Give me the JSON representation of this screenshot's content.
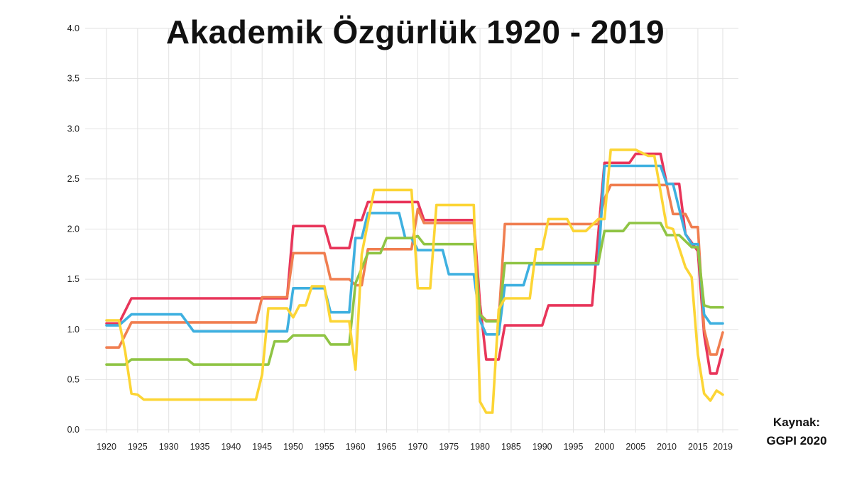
{
  "chart_data": {
    "type": "line",
    "title": "Akademik Özgürlük 1920 - 2019",
    "xlabel": "",
    "ylabel": "",
    "xlim": [
      1920,
      2019
    ],
    "ylim": [
      0,
      4
    ],
    "grid": true,
    "legend": "none",
    "x_ticks": [
      "1920",
      "1925",
      "1930",
      "1935",
      "1940",
      "1945",
      "1950",
      "1955",
      "1960",
      "1965",
      "1970",
      "1975",
      "1980",
      "1985",
      "1990",
      "1995",
      "2000",
      "2005",
      "2010",
      "2015",
      "2019"
    ],
    "y_ticks": [
      "0.0",
      "0.5",
      "1.0",
      "1.5",
      "2.0",
      "2.5",
      "3.0",
      "3.5",
      "4.0"
    ],
    "series": [
      {
        "color": "#e8355a",
        "points": [
          [
            1920,
            1.06
          ],
          [
            1922,
            1.06
          ],
          [
            1924,
            1.31
          ],
          [
            1949,
            1.31
          ],
          [
            1950,
            2.03
          ],
          [
            1955,
            2.03
          ],
          [
            1956,
            1.81
          ],
          [
            1959,
            1.81
          ],
          [
            1960,
            2.09
          ],
          [
            1961,
            2.09
          ],
          [
            1962,
            2.27
          ],
          [
            1970,
            2.27
          ],
          [
            1971,
            2.09
          ],
          [
            1979,
            2.09
          ],
          [
            1980,
            1.25
          ],
          [
            1981,
            0.7
          ],
          [
            1983,
            0.7
          ],
          [
            1984,
            1.04
          ],
          [
            1990,
            1.04
          ],
          [
            1991,
            1.24
          ],
          [
            1998,
            1.24
          ],
          [
            2000,
            2.66
          ],
          [
            2004,
            2.66
          ],
          [
            2005,
            2.75
          ],
          [
            2009,
            2.75
          ],
          [
            2010,
            2.45
          ],
          [
            2012,
            2.45
          ],
          [
            2013,
            1.95
          ],
          [
            2015,
            1.78
          ],
          [
            2016,
            0.95
          ],
          [
            2017,
            0.56
          ],
          [
            2018,
            0.56
          ],
          [
            2019,
            0.8
          ]
        ]
      },
      {
        "color": "#f07e50",
        "points": [
          [
            1920,
            0.82
          ],
          [
            1922,
            0.82
          ],
          [
            1924,
            1.07
          ],
          [
            1944,
            1.07
          ],
          [
            1945,
            1.32
          ],
          [
            1949,
            1.32
          ],
          [
            1950,
            1.76
          ],
          [
            1955,
            1.76
          ],
          [
            1956,
            1.5
          ],
          [
            1959,
            1.5
          ],
          [
            1960,
            1.44
          ],
          [
            1961,
            1.44
          ],
          [
            1962,
            1.8
          ],
          [
            1969,
            1.8
          ],
          [
            1970,
            2.2
          ],
          [
            1971,
            2.06
          ],
          [
            1979,
            2.06
          ],
          [
            1980,
            1.15
          ],
          [
            1981,
            1.09
          ],
          [
            1983,
            1.09
          ],
          [
            1984,
            2.05
          ],
          [
            1999,
            2.05
          ],
          [
            2000,
            2.3
          ],
          [
            2001,
            2.44
          ],
          [
            2010,
            2.44
          ],
          [
            2011,
            2.15
          ],
          [
            2013,
            2.15
          ],
          [
            2014,
            2.02
          ],
          [
            2015,
            2.02
          ],
          [
            2016,
            1.0
          ],
          [
            2017,
            0.75
          ],
          [
            2018,
            0.75
          ],
          [
            2019,
            0.97
          ]
        ]
      },
      {
        "color": "#3eb0e0",
        "points": [
          [
            1920,
            1.04
          ],
          [
            1922,
            1.04
          ],
          [
            1924,
            1.15
          ],
          [
            1932,
            1.15
          ],
          [
            1934,
            0.98
          ],
          [
            1949,
            0.98
          ],
          [
            1950,
            1.41
          ],
          [
            1955,
            1.41
          ],
          [
            1956,
            1.17
          ],
          [
            1959,
            1.17
          ],
          [
            1960,
            1.91
          ],
          [
            1961,
            1.91
          ],
          [
            1962,
            2.16
          ],
          [
            1967,
            2.16
          ],
          [
            1968,
            1.91
          ],
          [
            1969,
            1.91
          ],
          [
            1970,
            1.79
          ],
          [
            1974,
            1.79
          ],
          [
            1975,
            1.55
          ],
          [
            1979,
            1.55
          ],
          [
            1980,
            1.09
          ],
          [
            1981,
            0.95
          ],
          [
            1983,
            0.95
          ],
          [
            1984,
            1.44
          ],
          [
            1987,
            1.44
          ],
          [
            1988,
            1.65
          ],
          [
            1999,
            1.65
          ],
          [
            2000,
            2.63
          ],
          [
            2009,
            2.63
          ],
          [
            2010,
            2.45
          ],
          [
            2011,
            2.45
          ],
          [
            2013,
            1.95
          ],
          [
            2014,
            1.85
          ],
          [
            2015,
            1.85
          ],
          [
            2016,
            1.15
          ],
          [
            2017,
            1.06
          ],
          [
            2019,
            1.06
          ]
        ]
      },
      {
        "color": "#8fc444",
        "points": [
          [
            1920,
            0.65
          ],
          [
            1923,
            0.65
          ],
          [
            1924,
            0.7
          ],
          [
            1933,
            0.7
          ],
          [
            1934,
            0.65
          ],
          [
            1946,
            0.65
          ],
          [
            1947,
            0.88
          ],
          [
            1949,
            0.88
          ],
          [
            1950,
            0.94
          ],
          [
            1955,
            0.94
          ],
          [
            1956,
            0.85
          ],
          [
            1959,
            0.85
          ],
          [
            1960,
            1.46
          ],
          [
            1962,
            1.76
          ],
          [
            1964,
            1.76
          ],
          [
            1965,
            1.91
          ],
          [
            1969,
            1.91
          ],
          [
            1970,
            1.93
          ],
          [
            1971,
            1.85
          ],
          [
            1979,
            1.85
          ],
          [
            1980,
            1.15
          ],
          [
            1981,
            1.08
          ],
          [
            1983,
            1.08
          ],
          [
            1984,
            1.66
          ],
          [
            1999,
            1.66
          ],
          [
            2000,
            1.98
          ],
          [
            2003,
            1.98
          ],
          [
            2004,
            2.06
          ],
          [
            2009,
            2.06
          ],
          [
            2010,
            1.94
          ],
          [
            2012,
            1.94
          ],
          [
            2014,
            1.82
          ],
          [
            2015,
            1.82
          ],
          [
            2016,
            1.24
          ],
          [
            2017,
            1.22
          ],
          [
            2019,
            1.22
          ]
        ]
      },
      {
        "color": "#fcd535",
        "points": [
          [
            1920,
            1.09
          ],
          [
            1922,
            1.09
          ],
          [
            1923,
            0.78
          ],
          [
            1924,
            0.36
          ],
          [
            1925,
            0.35
          ],
          [
            1926,
            0.3
          ],
          [
            1944,
            0.3
          ],
          [
            1945,
            0.55
          ],
          [
            1946,
            1.21
          ],
          [
            1949,
            1.21
          ],
          [
            1950,
            1.12
          ],
          [
            1951,
            1.24
          ],
          [
            1952,
            1.24
          ],
          [
            1953,
            1.43
          ],
          [
            1955,
            1.43
          ],
          [
            1956,
            1.08
          ],
          [
            1959,
            1.08
          ],
          [
            1960,
            0.6
          ],
          [
            1961,
            1.75
          ],
          [
            1963,
            2.39
          ],
          [
            1969,
            2.39
          ],
          [
            1970,
            1.41
          ],
          [
            1972,
            1.41
          ],
          [
            1973,
            2.24
          ],
          [
            1979,
            2.24
          ],
          [
            1980,
            0.28
          ],
          [
            1981,
            0.17
          ],
          [
            1982,
            0.17
          ],
          [
            1983,
            1.2
          ],
          [
            1984,
            1.31
          ],
          [
            1988,
            1.31
          ],
          [
            1989,
            1.8
          ],
          [
            1990,
            1.8
          ],
          [
            1991,
            2.1
          ],
          [
            1994,
            2.1
          ],
          [
            1995,
            1.98
          ],
          [
            1997,
            1.98
          ],
          [
            1999,
            2.1
          ],
          [
            2000,
            2.1
          ],
          [
            2001,
            2.79
          ],
          [
            2005,
            2.79
          ],
          [
            2007,
            2.73
          ],
          [
            2008,
            2.73
          ],
          [
            2010,
            2.02
          ],
          [
            2011,
            2.0
          ],
          [
            2013,
            1.62
          ],
          [
            2014,
            1.52
          ],
          [
            2015,
            0.75
          ],
          [
            2016,
            0.36
          ],
          [
            2017,
            0.29
          ],
          [
            2018,
            0.39
          ],
          [
            2019,
            0.35
          ]
        ]
      }
    ]
  },
  "source": {
    "line1": "Kaynak:",
    "line2": "GGPI 2020"
  }
}
